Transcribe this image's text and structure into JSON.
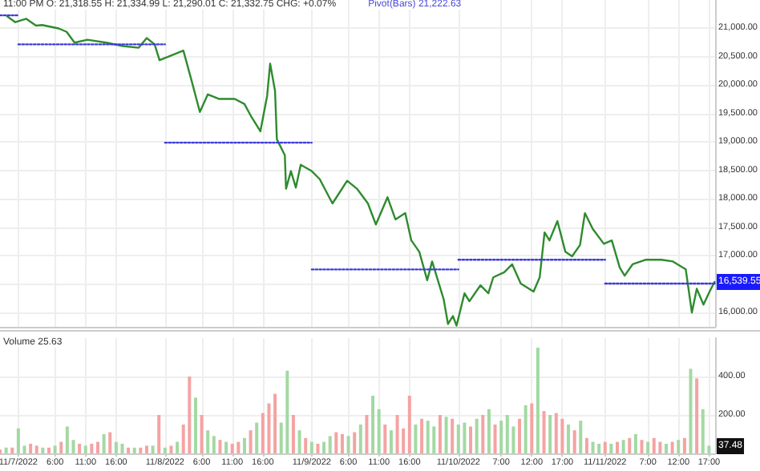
{
  "chart_data": [
    {
      "type": "line",
      "annotations": [
        "11:00 PM O: 21,318.55 H: 21,334.99 L: 21,290.01 C: 21,332.75 CHG: +0.07%",
        "Pivot(Bars) 21,222.63",
        {
          "text": "16,539.55",
          "x": "2022-11-11T17:54",
          "y": 16539.55
        }
      ],
      "xlim": [
        "2022-11-06T21:00",
        "2022-11-11T18:00"
      ],
      "xticks": [
        "2022-11-07T00:00",
        "2022-11-07T06:00",
        "2022-11-07T11:00",
        "2022-11-07T16:00",
        "2022-11-08T00:00",
        "2022-11-08T06:00",
        "2022-11-08T11:00",
        "2022-11-08T16:00",
        "2022-11-09T00:00",
        "2022-11-09T06:00",
        "2022-11-09T11:00",
        "2022-11-09T16:00",
        "2022-11-10T00:00",
        "2022-11-10T07:00",
        "2022-11-10T12:00",
        "2022-11-10T17:00",
        "2022-11-11T00:00",
        "2022-11-11T07:00",
        "2022-11-11T12:00",
        "2022-11-11T17:00"
      ],
      "ylim": [
        15750,
        21500
      ],
      "yticks": [
        {
          "value": 16000,
          "label": "16,000.00"
        },
        {
          "value": 16500,
          "label": null
        },
        {
          "value": 17000,
          "label": "17,000.00"
        },
        {
          "value": 17500,
          "label": "17,500.00"
        },
        {
          "value": 18000,
          "label": "18,000.00"
        },
        {
          "value": 18500,
          "label": "18,500.00"
        },
        {
          "value": 19000,
          "label": "19,000.00"
        },
        {
          "value": 19500,
          "label": "19,500.00"
        },
        {
          "value": 20000,
          "label": "20,000.00"
        },
        {
          "value": 20500,
          "label": "20,500.00"
        },
        {
          "value": 21000,
          "label": "21,000.00"
        }
      ],
      "tick_labels": "y",
      "grid": true,
      "marker": "none",
      "series": [
        {
          "color": "#2e8b2e",
          "x": [
            "2022-11-06T22:12",
            "2022-11-06T23:30",
            "2022-11-07T01:18",
            "2022-11-07T02:54",
            "2022-11-07T03:54",
            "2022-11-07T06:36",
            "2022-11-07T07:54",
            "2022-11-07T09:12",
            "2022-11-07T11:18",
            "2022-11-07T14:24",
            "2022-11-07T17:06",
            "2022-11-07T19:42",
            "2022-11-07T21:00",
            "2022-11-07T22:18",
            "2022-11-07T23:06",
            "2022-11-08T00:54",
            "2022-11-08T03:00",
            "2022-11-08T04:18",
            "2022-11-08T05:42",
            "2022-11-08T07:00",
            "2022-11-08T08:48",
            "2022-11-08T11:24",
            "2022-11-08T13:00",
            "2022-11-08T14:06",
            "2022-11-08T15:36",
            "2022-11-08T16:42",
            "2022-11-08T17:12",
            "2022-11-08T18:00",
            "2022-11-08T18:18",
            "2022-11-08T19:36",
            "2022-11-08T19:48",
            "2022-11-08T20:36",
            "2022-11-08T21:24",
            "2022-11-08T22:12",
            "2022-11-09T00:00",
            "2022-11-09T01:18",
            "2022-11-09T03:24",
            "2022-11-09T05:48",
            "2022-11-09T07:24",
            "2022-11-09T09:12",
            "2022-11-09T10:30",
            "2022-11-09T12:24",
            "2022-11-09T13:42",
            "2022-11-09T15:18",
            "2022-11-09T16:18",
            "2022-11-09T17:36",
            "2022-11-09T18:54",
            "2022-11-09T19:42",
            "2022-11-09T21:36",
            "2022-11-09T22:18",
            "2022-11-09T23:06",
            "2022-11-09T23:42",
            "2022-11-10T01:00",
            "2022-11-10T01:48",
            "2022-11-10T03:36",
            "2022-11-10T04:54",
            "2022-11-10T05:42",
            "2022-11-10T07:30",
            "2022-11-10T08:48",
            "2022-11-10T10:12",
            "2022-11-10T12:18",
            "2022-11-10T13:18",
            "2022-11-10T14:06",
            "2022-11-10T14:54",
            "2022-11-10T16:12",
            "2022-11-10T17:30",
            "2022-11-10T18:36",
            "2022-11-10T19:54",
            "2022-11-10T20:42",
            "2022-11-10T22:00",
            "2022-11-10T23:48",
            "2022-11-11T01:06",
            "2022-11-11T02:24",
            "2022-11-11T03:12",
            "2022-11-11T04:30",
            "2022-11-11T06:36",
            "2022-11-11T09:12",
            "2022-11-11T11:06",
            "2022-11-11T13:12",
            "2022-11-11T14:12",
            "2022-11-11T15:00",
            "2022-11-11T16:06",
            "2022-11-11T17:06",
            "2022-11-11T17:54"
          ],
          "values": [
            21210,
            21110,
            21170,
            21050,
            21060,
            21000,
            20940,
            20750,
            20800,
            20750,
            20690,
            20660,
            20830,
            20720,
            20440,
            20520,
            20610,
            20100,
            19530,
            19840,
            19760,
            19760,
            19670,
            19450,
            19190,
            19810,
            20380,
            19900,
            19050,
            18770,
            18180,
            18490,
            18200,
            18600,
            18490,
            18350,
            17920,
            18320,
            18180,
            17920,
            17550,
            18030,
            17640,
            17750,
            17270,
            17070,
            16570,
            16900,
            16230,
            15800,
            15940,
            15770,
            16340,
            16200,
            16480,
            16340,
            16620,
            16710,
            16850,
            16510,
            16370,
            16620,
            17410,
            17270,
            17610,
            17070,
            16990,
            17190,
            17750,
            17470,
            17210,
            17270,
            16790,
            16650,
            16850,
            16930,
            16930,
            16900,
            16760,
            16000,
            16420,
            16140,
            16370,
            16540
          ]
        },
        {
          "type": "line",
          "color": "#3b3bdb",
          "line_style": "dotted",
          "x": [
            "2022-11-06T21:00",
            "2022-11-07T00:00"
          ],
          "values": [
            21230,
            21230
          ]
        },
        {
          "type": "line",
          "color": "#3b3bdb",
          "line_style": "dotted",
          "x": [
            "2022-11-07T00:00",
            "2022-11-08T00:00"
          ],
          "values": [
            20720,
            20720
          ]
        },
        {
          "type": "line",
          "color": "#3b3bdb",
          "line_style": "dotted",
          "x": [
            "2022-11-08T00:00",
            "2022-11-09T00:00"
          ],
          "values": [
            18990,
            18990
          ]
        },
        {
          "type": "line",
          "color": "#3b3bdb",
          "line_style": "dotted",
          "x": [
            "2022-11-09T00:00",
            "2022-11-10T00:00"
          ],
          "values": [
            16760,
            16760
          ]
        },
        {
          "type": "line",
          "color": "#3b3bdb",
          "line_style": "dotted",
          "x": [
            "2022-11-10T00:00",
            "2022-11-11T00:00"
          ],
          "values": [
            16930,
            16930
          ]
        },
        {
          "type": "line",
          "color": "#3b3bdb",
          "line_style": "dotted",
          "x": [
            "2022-11-11T00:00",
            "2022-11-11T18:00"
          ],
          "values": [
            16510,
            16510
          ]
        }
      ]
    },
    {
      "type": "bar",
      "annotations": [
        "Volume 25.63",
        {
          "text": "37.48",
          "x": "2022-11-11T17:00",
          "y": 37.48
        }
      ],
      "xlim": [
        "2022-11-06T21:00",
        "2022-11-11T18:00"
      ],
      "xticks": [
        {
          "value": "2022-11-07T00:00",
          "label": "11/7/2022"
        },
        {
          "value": "2022-11-07T06:00",
          "label": "6:00"
        },
        {
          "value": "2022-11-07T11:00",
          "label": "11:00"
        },
        {
          "value": "2022-11-07T16:00",
          "label": "16:00"
        },
        {
          "value": "2022-11-08T00:00",
          "label": "11/8/2022"
        },
        {
          "value": "2022-11-08T06:00",
          "label": "6:00"
        },
        {
          "value": "2022-11-08T11:00",
          "label": "11:00"
        },
        {
          "value": "2022-11-08T16:00",
          "label": "16:00"
        },
        {
          "value": "2022-11-09T00:00",
          "label": "11/9/2022"
        },
        {
          "value": "2022-11-09T06:00",
          "label": "6:00"
        },
        {
          "value": "2022-11-09T11:00",
          "label": "11:00"
        },
        {
          "value": "2022-11-09T16:00",
          "label": "16:00"
        },
        {
          "value": "2022-11-10T00:00",
          "label": "11/10/2022"
        },
        {
          "value": "2022-11-10T07:00",
          "label": "7:00"
        },
        {
          "value": "2022-11-10T12:00",
          "label": "12:00"
        },
        {
          "value": "2022-11-10T17:00",
          "label": "17:00"
        },
        {
          "value": "2022-11-11T00:00",
          "label": "11/11/2022"
        },
        {
          "value": "2022-11-11T07:00",
          "label": "7:00"
        },
        {
          "value": "2022-11-11T12:00",
          "label": "12:00"
        },
        {
          "value": "2022-11-11T17:00",
          "label": "17:00"
        }
      ],
      "ylim": [
        0,
        600
      ],
      "yticks": [
        {
          "value": 200,
          "label": "200.00"
        },
        {
          "value": 400,
          "label": "400.00"
        }
      ],
      "grid": true,
      "x": [
        "2022-11-06T21:00",
        "2022-11-06T22:00",
        "2022-11-06T23:00",
        "2022-11-07T00:00",
        "2022-11-07T01:00",
        "2022-11-07T02:00",
        "2022-11-07T03:00",
        "2022-11-07T04:00",
        "2022-11-07T05:00",
        "2022-11-07T06:00",
        "2022-11-07T07:00",
        "2022-11-07T08:00",
        "2022-11-07T09:00",
        "2022-11-07T10:00",
        "2022-11-07T11:00",
        "2022-11-07T12:00",
        "2022-11-07T13:00",
        "2022-11-07T14:00",
        "2022-11-07T15:00",
        "2022-11-07T16:00",
        "2022-11-07T17:00",
        "2022-11-07T18:00",
        "2022-11-07T19:00",
        "2022-11-07T20:00",
        "2022-11-07T21:00",
        "2022-11-07T22:00",
        "2022-11-07T23:00",
        "2022-11-08T00:00",
        "2022-11-08T01:00",
        "2022-11-08T02:00",
        "2022-11-08T03:00",
        "2022-11-08T04:00",
        "2022-11-08T05:00",
        "2022-11-08T06:00",
        "2022-11-08T07:00",
        "2022-11-08T08:00",
        "2022-11-08T09:00",
        "2022-11-08T10:00",
        "2022-11-08T11:00",
        "2022-11-08T12:00",
        "2022-11-08T13:00",
        "2022-11-08T14:00",
        "2022-11-08T15:00",
        "2022-11-08T16:00",
        "2022-11-08T17:00",
        "2022-11-08T18:00",
        "2022-11-08T19:00",
        "2022-11-08T20:00",
        "2022-11-08T21:00",
        "2022-11-08T22:00",
        "2022-11-08T23:00",
        "2022-11-09T00:00",
        "2022-11-09T01:00",
        "2022-11-09T02:00",
        "2022-11-09T03:00",
        "2022-11-09T04:00",
        "2022-11-09T05:00",
        "2022-11-09T06:00",
        "2022-11-09T07:00",
        "2022-11-09T08:00",
        "2022-11-09T09:00",
        "2022-11-09T10:00",
        "2022-11-09T11:00",
        "2022-11-09T12:00",
        "2022-11-09T13:00",
        "2022-11-09T14:00",
        "2022-11-09T15:00",
        "2022-11-09T16:00",
        "2022-11-09T17:00",
        "2022-11-09T18:00",
        "2022-11-09T19:00",
        "2022-11-09T20:00",
        "2022-11-09T21:00",
        "2022-11-09T22:00",
        "2022-11-09T23:00",
        "2022-11-10T00:00",
        "2022-11-10T01:00",
        "2022-11-10T02:00",
        "2022-11-10T03:00",
        "2022-11-10T04:00",
        "2022-11-10T05:00",
        "2022-11-10T06:00",
        "2022-11-10T07:00",
        "2022-11-10T08:00",
        "2022-11-10T09:00",
        "2022-11-10T10:00",
        "2022-11-10T11:00",
        "2022-11-10T12:00",
        "2022-11-10T13:00",
        "2022-11-10T14:00",
        "2022-11-10T15:00",
        "2022-11-10T16:00",
        "2022-11-10T17:00",
        "2022-11-10T18:00",
        "2022-11-10T19:00",
        "2022-11-10T20:00",
        "2022-11-10T21:00",
        "2022-11-10T22:00",
        "2022-11-10T23:00",
        "2022-11-11T00:00",
        "2022-11-11T01:00",
        "2022-11-11T02:00",
        "2022-11-11T03:00",
        "2022-11-11T04:00",
        "2022-11-11T05:00",
        "2022-11-11T06:00",
        "2022-11-11T07:00",
        "2022-11-11T08:00",
        "2022-11-11T09:00",
        "2022-11-11T10:00",
        "2022-11-11T11:00",
        "2022-11-11T12:00",
        "2022-11-11T13:00",
        "2022-11-11T14:00",
        "2022-11-11T15:00",
        "2022-11-11T16:00",
        "2022-11-11T17:00"
      ],
      "values": [
        20,
        30,
        30,
        130,
        40,
        50,
        40,
        30,
        30,
        40,
        60,
        140,
        70,
        50,
        40,
        50,
        60,
        100,
        110,
        60,
        50,
        30,
        30,
        30,
        40,
        40,
        200,
        30,
        40,
        60,
        150,
        400,
        290,
        200,
        120,
        90,
        70,
        60,
        50,
        60,
        80,
        120,
        160,
        210,
        260,
        310,
        160,
        430,
        200,
        120,
        80,
        60,
        50,
        60,
        90,
        110,
        100,
        90,
        110,
        150,
        200,
        300,
        230,
        150,
        120,
        200,
        130,
        300,
        150,
        180,
        170,
        140,
        200,
        190,
        180,
        150,
        160,
        140,
        180,
        200,
        230,
        150,
        170,
        200,
        140,
        180,
        250,
        260,
        550,
        220,
        200,
        210,
        180,
        150,
        120,
        170,
        80,
        60,
        50,
        60,
        50,
        60,
        70,
        80,
        100,
        70,
        60,
        80,
        60,
        50,
        60,
        70,
        80,
        440,
        390,
        230,
        40
      ],
      "colors": [
        "#f4a3a3",
        "#a3d9a3",
        "#f4a3a3",
        "#a3d9a3",
        "#a3d9a3",
        "#f4a3a3",
        "#f4a3a3",
        "#a3d9a3",
        "#f4a3a3",
        "#a3d9a3",
        "#f4a3a3",
        "#a3d9a3",
        "#a3d9a3",
        "#f4a3a3",
        "#a3d9a3",
        "#f4a3a3",
        "#f4a3a3",
        "#a3d9a3",
        "#f4a3a3",
        "#a3d9a3",
        "#a3d9a3",
        "#f4a3a3",
        "#a3d9a3",
        "#f4a3a3",
        "#f4a3a3",
        "#a3d9a3",
        "#f4a3a3",
        "#a3d9a3",
        "#f4a3a3",
        "#a3d9a3",
        "#f4a3a3",
        "#f4a3a3",
        "#a3d9a3",
        "#f4a3a3",
        "#a3d9a3",
        "#a3d9a3",
        "#f4a3a3",
        "#a3d9a3",
        "#f4a3a3",
        "#f4a3a3",
        "#a3d9a3",
        "#f4a3a3",
        "#a3d9a3",
        "#f4a3a3",
        "#f4a3a3",
        "#f4a3a3",
        "#a3d9a3",
        "#a3d9a3",
        "#f4a3a3",
        "#a3d9a3",
        "#f4a3a3",
        "#a3d9a3",
        "#f4a3a3",
        "#a3d9a3",
        "#a3d9a3",
        "#f4a3a3",
        "#f4a3a3",
        "#a3d9a3",
        "#f4a3a3",
        "#a3d9a3",
        "#f4a3a3",
        "#a3d9a3",
        "#a3d9a3",
        "#f4a3a3",
        "#a3d9a3",
        "#f4a3a3",
        "#f4a3a3",
        "#f4a3a3",
        "#a3d9a3",
        "#f4a3a3",
        "#a3d9a3",
        "#a3d9a3",
        "#f4a3a3",
        "#a3d9a3",
        "#f4a3a3",
        "#a3d9a3",
        "#a3d9a3",
        "#f4a3a3",
        "#a3d9a3",
        "#f4a3a3",
        "#a3d9a3",
        "#f4a3a3",
        "#a3d9a3",
        "#a3d9a3",
        "#a3d9a3",
        "#f4a3a3",
        "#a3d9a3",
        "#f4a3a3",
        "#a3d9a3",
        "#f4a3a3",
        "#a3d9a3",
        "#f4a3a3",
        "#f4a3a3",
        "#a3d9a3",
        "#f4a3a3",
        "#a3d9a3",
        "#f4a3a3",
        "#a3d9a3",
        "#a3d9a3",
        "#f4a3a3",
        "#a3d9a3",
        "#f4a3a3",
        "#a3d9a3",
        "#f4a3a3",
        "#a3d9a3",
        "#f4a3a3",
        "#a3d9a3",
        "#f4a3a3",
        "#f4a3a3",
        "#a3d9a3",
        "#f4a3a3",
        "#a3d9a3",
        "#f4a3a3",
        "#a3d9a3",
        "#f4a3a3",
        "#a3d9a3",
        "#a3d9a3"
      ]
    }
  ]
}
